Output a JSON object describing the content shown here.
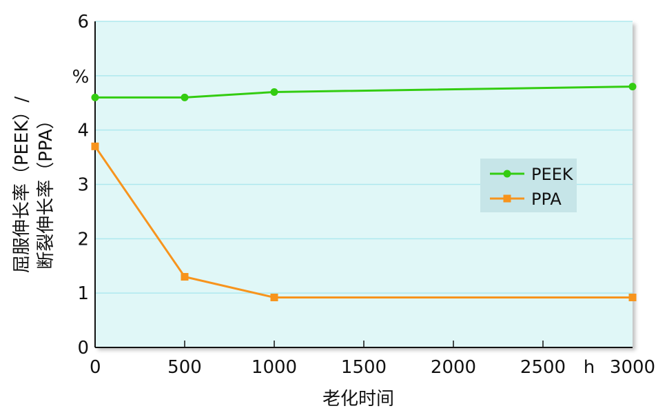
{
  "chart_data": {
    "type": "line",
    "title": "",
    "xlabel": "老化时间",
    "x_unit": "h",
    "ylabel_line1": "屈服伸长率（PEEK）/",
    "ylabel_line2": "断裂伸长率（PPA）",
    "y_unit": "%",
    "x_ticks": [
      "0",
      "500",
      "1000",
      "1500",
      "2000",
      "2500",
      "3000"
    ],
    "y_ticks": [
      "0",
      "1",
      "2",
      "3",
      "4",
      "6"
    ],
    "xlim": [
      0,
      3000
    ],
    "ylim": [
      0,
      6
    ],
    "grid": "horizontal",
    "legend_position": "right",
    "plot_background": "#e0f7f7",
    "gridline_color": "#aee8ee",
    "series": [
      {
        "name": "PEEK",
        "marker": "circle",
        "color": "#33cc11",
        "x": [
          0,
          500,
          1000,
          3000
        ],
        "y": [
          4.6,
          4.6,
          4.7,
          4.8
        ]
      },
      {
        "name": "PPA",
        "marker": "square",
        "color": "#f7941d",
        "x": [
          0,
          500,
          1000,
          3000
        ],
        "y": [
          3.7,
          1.3,
          0.92,
          0.92
        ]
      }
    ]
  }
}
